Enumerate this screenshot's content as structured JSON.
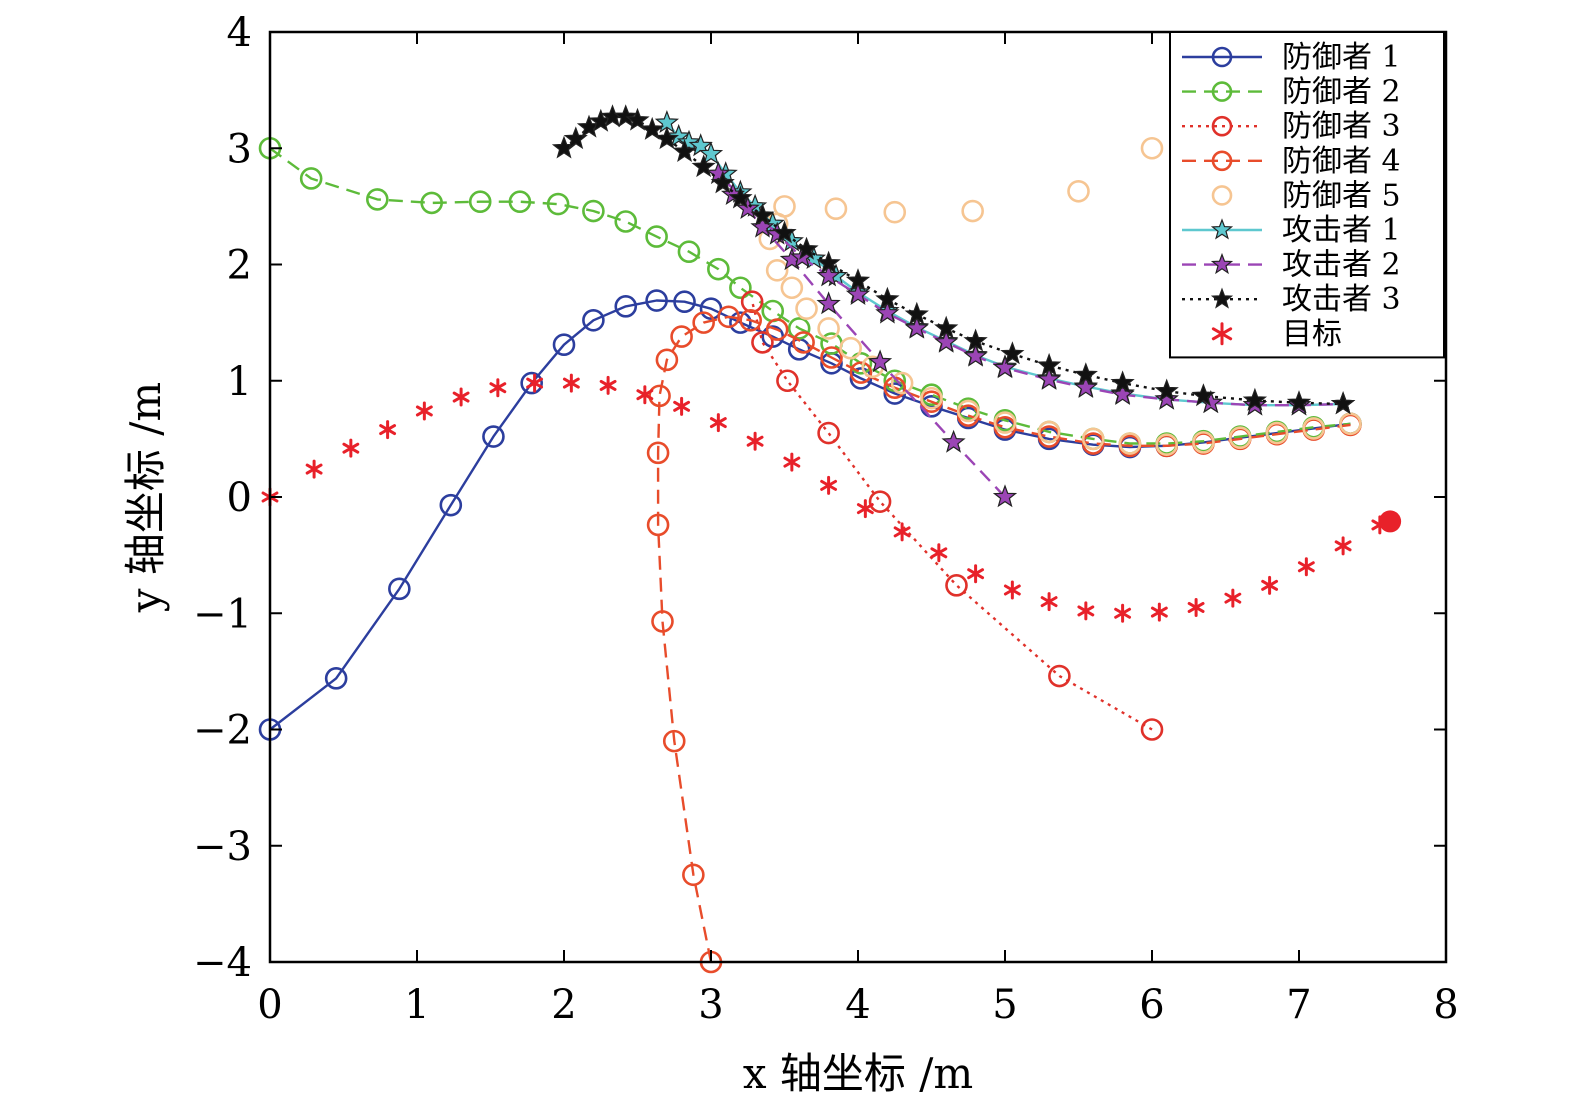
{
  "chart_data": {
    "type": "line",
    "title": "",
    "xlabel": "x 轴坐标 /m",
    "ylabel": "y 轴坐标 /m",
    "xlim": [
      0,
      8
    ],
    "ylim": [
      -4,
      4
    ],
    "xticks": [
      0,
      1,
      2,
      3,
      4,
      5,
      6,
      7,
      8
    ],
    "yticks": [
      4,
      3,
      2,
      1,
      0,
      -1,
      -2,
      -3,
      -4
    ],
    "xtick_labels": [
      "0",
      "1",
      "2",
      "3",
      "4",
      "5",
      "6",
      "7",
      "8"
    ],
    "ytick_labels": [
      "4",
      "3",
      "2",
      "1",
      "0",
      "−1",
      "−2",
      "−3",
      "−4"
    ],
    "grid": false,
    "legend_position": "top-right",
    "series": [
      {
        "name": "防御者 1",
        "color": "#2c3e9e",
        "line": "solid",
        "marker": "circle",
        "x": [
          0,
          0.45,
          0.88,
          1.23,
          1.52,
          1.78,
          2.0,
          2.2,
          2.42,
          2.63,
          2.82,
          3.0,
          3.2,
          3.42,
          3.6,
          3.82,
          4.02,
          4.25,
          4.5,
          4.75,
          5.0,
          5.3,
          5.6,
          5.85,
          6.1,
          6.35,
          6.6,
          6.85,
          7.1,
          7.35
        ],
        "y": [
          -2.0,
          -1.56,
          -0.79,
          -0.07,
          0.52,
          0.98,
          1.31,
          1.52,
          1.64,
          1.69,
          1.68,
          1.62,
          1.5,
          1.38,
          1.27,
          1.15,
          1.02,
          0.89,
          0.78,
          0.68,
          0.58,
          0.5,
          0.45,
          0.43,
          0.44,
          0.47,
          0.51,
          0.55,
          0.59,
          0.63
        ]
      },
      {
        "name": "防御者 2",
        "color": "#5dbb3a",
        "line": "dashed",
        "marker": "circle",
        "x": [
          0,
          0.28,
          0.73,
          1.1,
          1.43,
          1.7,
          1.96,
          2.2,
          2.42,
          2.63,
          2.85,
          3.05,
          3.2,
          3.42,
          3.6,
          3.82,
          4.02,
          4.25,
          4.5,
          4.75,
          5.0,
          5.3,
          5.6,
          5.85,
          6.1,
          6.35,
          6.6,
          6.85,
          7.1,
          7.35
        ],
        "y": [
          3.0,
          2.74,
          2.56,
          2.53,
          2.54,
          2.54,
          2.52,
          2.46,
          2.37,
          2.24,
          2.11,
          1.96,
          1.8,
          1.6,
          1.45,
          1.32,
          1.15,
          1.0,
          0.88,
          0.76,
          0.66,
          0.56,
          0.5,
          0.46,
          0.46,
          0.48,
          0.52,
          0.56,
          0.6,
          0.63
        ]
      },
      {
        "name": "防御者 3",
        "color": "#e0312a",
        "line": "dotted",
        "marker": "circle",
        "x": [
          6.0,
          5.37,
          4.67,
          4.15,
          3.8,
          3.52,
          3.35,
          3.28
        ],
        "y": [
          -2.0,
          -1.54,
          -0.76,
          -0.04,
          0.55,
          1.0,
          1.33,
          1.68
        ]
      },
      {
        "name": "防御者 4",
        "color": "#e84c2b",
        "line": "dashed",
        "marker": "circle",
        "x": [
          3.0,
          2.88,
          2.75,
          2.67,
          2.64,
          2.64,
          2.65,
          2.7,
          2.8,
          2.95,
          3.12,
          3.27,
          3.45,
          3.63,
          3.82,
          4.02,
          4.25,
          4.5,
          4.75,
          5.0,
          5.3,
          5.6,
          5.85,
          6.1,
          6.35,
          6.6,
          6.85,
          7.1,
          7.35
        ],
        "y": [
          -4.0,
          -3.25,
          -2.1,
          -1.07,
          -0.24,
          0.38,
          0.87,
          1.18,
          1.38,
          1.5,
          1.55,
          1.52,
          1.44,
          1.33,
          1.2,
          1.07,
          0.94,
          0.82,
          0.7,
          0.6,
          0.52,
          0.46,
          0.44,
          0.44,
          0.46,
          0.5,
          0.54,
          0.58,
          0.62
        ]
      },
      {
        "name": "防御者 5",
        "color": "#f6c592",
        "line": "none",
        "marker": "circle",
        "x": [
          6.0,
          5.5,
          4.78,
          4.25,
          3.85,
          3.5,
          3.45,
          3.4,
          3.45,
          3.55,
          3.65,
          3.8,
          3.95,
          4.1,
          4.3,
          4.5,
          4.75,
          5.0,
          5.3,
          5.6,
          5.85,
          6.1,
          6.35,
          6.6,
          6.85,
          7.1,
          7.35
        ],
        "y": [
          3.0,
          2.63,
          2.46,
          2.45,
          2.48,
          2.5,
          2.35,
          2.22,
          1.95,
          1.8,
          1.62,
          1.45,
          1.28,
          1.12,
          0.98,
          0.85,
          0.74,
          0.64,
          0.56,
          0.5,
          0.46,
          0.45,
          0.47,
          0.51,
          0.55,
          0.59,
          0.63
        ]
      },
      {
        "name": "攻击者 1",
        "color": "#5ec8cf",
        "line": "solid",
        "marker": "star",
        "x": [
          2.7,
          2.78,
          2.85,
          2.93,
          3.0,
          3.1,
          3.2,
          3.3,
          3.42,
          3.55,
          3.7,
          3.85,
          4.0,
          4.2,
          4.4,
          4.6,
          4.8,
          5.0,
          5.3,
          5.55,
          5.8,
          6.1,
          6.4,
          6.7,
          7.0,
          7.3
        ],
        "y": [
          3.22,
          3.1,
          3.05,
          3.02,
          2.95,
          2.78,
          2.62,
          2.5,
          2.35,
          2.2,
          2.05,
          1.9,
          1.76,
          1.6,
          1.46,
          1.34,
          1.22,
          1.12,
          1.02,
          0.95,
          0.89,
          0.84,
          0.81,
          0.79,
          0.79,
          0.8
        ]
      },
      {
        "name": "攻击者 2",
        "color": "#9b45b5",
        "line": "dashed",
        "marker": "star",
        "x": [
          5.0,
          4.65,
          4.15,
          3.8,
          3.55,
          3.35,
          3.25,
          3.15,
          3.05,
          3.45,
          3.62,
          3.8,
          4.0,
          4.2,
          4.4,
          4.6,
          4.8,
          5.0,
          5.3,
          5.55,
          5.8,
          6.1,
          6.4,
          6.7,
          7.0,
          7.3
        ],
        "y": [
          0.0,
          0.47,
          1.16,
          1.66,
          2.04,
          2.32,
          2.48,
          2.6,
          2.78,
          2.26,
          2.06,
          1.9,
          1.74,
          1.58,
          1.45,
          1.33,
          1.21,
          1.11,
          1.01,
          0.94,
          0.88,
          0.84,
          0.81,
          0.79,
          0.79,
          0.8
        ]
      },
      {
        "name": "攻击者 3",
        "color": "#111111",
        "line": "dotted",
        "marker": "star",
        "x": [
          2.0,
          2.08,
          2.17,
          2.25,
          2.33,
          2.42,
          2.5,
          2.6,
          2.7,
          2.82,
          2.95,
          3.08,
          3.2,
          3.35,
          3.5,
          3.65,
          3.8,
          4.0,
          4.2,
          4.4,
          4.6,
          4.8,
          5.05,
          5.3,
          5.55,
          5.8,
          6.1,
          6.35,
          6.7,
          7.0,
          7.3
        ],
        "y": [
          3.0,
          3.08,
          3.18,
          3.23,
          3.27,
          3.27,
          3.24,
          3.16,
          3.08,
          2.97,
          2.84,
          2.7,
          2.57,
          2.42,
          2.27,
          2.13,
          2.01,
          1.86,
          1.7,
          1.57,
          1.45,
          1.34,
          1.23,
          1.13,
          1.05,
          0.98,
          0.91,
          0.87,
          0.83,
          0.81,
          0.8
        ]
      },
      {
        "name": "目标",
        "color": "#e8212a",
        "line": "none",
        "marker": "asterisk",
        "x": [
          0,
          0.3,
          0.55,
          0.8,
          1.05,
          1.3,
          1.55,
          1.8,
          2.05,
          2.3,
          2.55,
          2.8,
          3.05,
          3.3,
          3.55,
          3.8,
          4.05,
          4.3,
          4.55,
          4.8,
          5.05,
          5.3,
          5.55,
          5.8,
          6.05,
          6.3,
          6.55,
          6.8,
          7.05,
          7.3,
          7.55
        ],
        "y": [
          0.0,
          0.24,
          0.42,
          0.58,
          0.74,
          0.86,
          0.94,
          0.98,
          0.98,
          0.96,
          0.88,
          0.78,
          0.64,
          0.48,
          0.3,
          0.1,
          -0.1,
          -0.3,
          -0.48,
          -0.66,
          -0.8,
          -0.9,
          -0.98,
          -1.0,
          -0.99,
          -0.95,
          -0.87,
          -0.76,
          -0.6,
          -0.42,
          -0.24
        ]
      }
    ],
    "target_endpoint": {
      "x": 7.62,
      "y": -0.21,
      "color": "#e8212a"
    }
  }
}
